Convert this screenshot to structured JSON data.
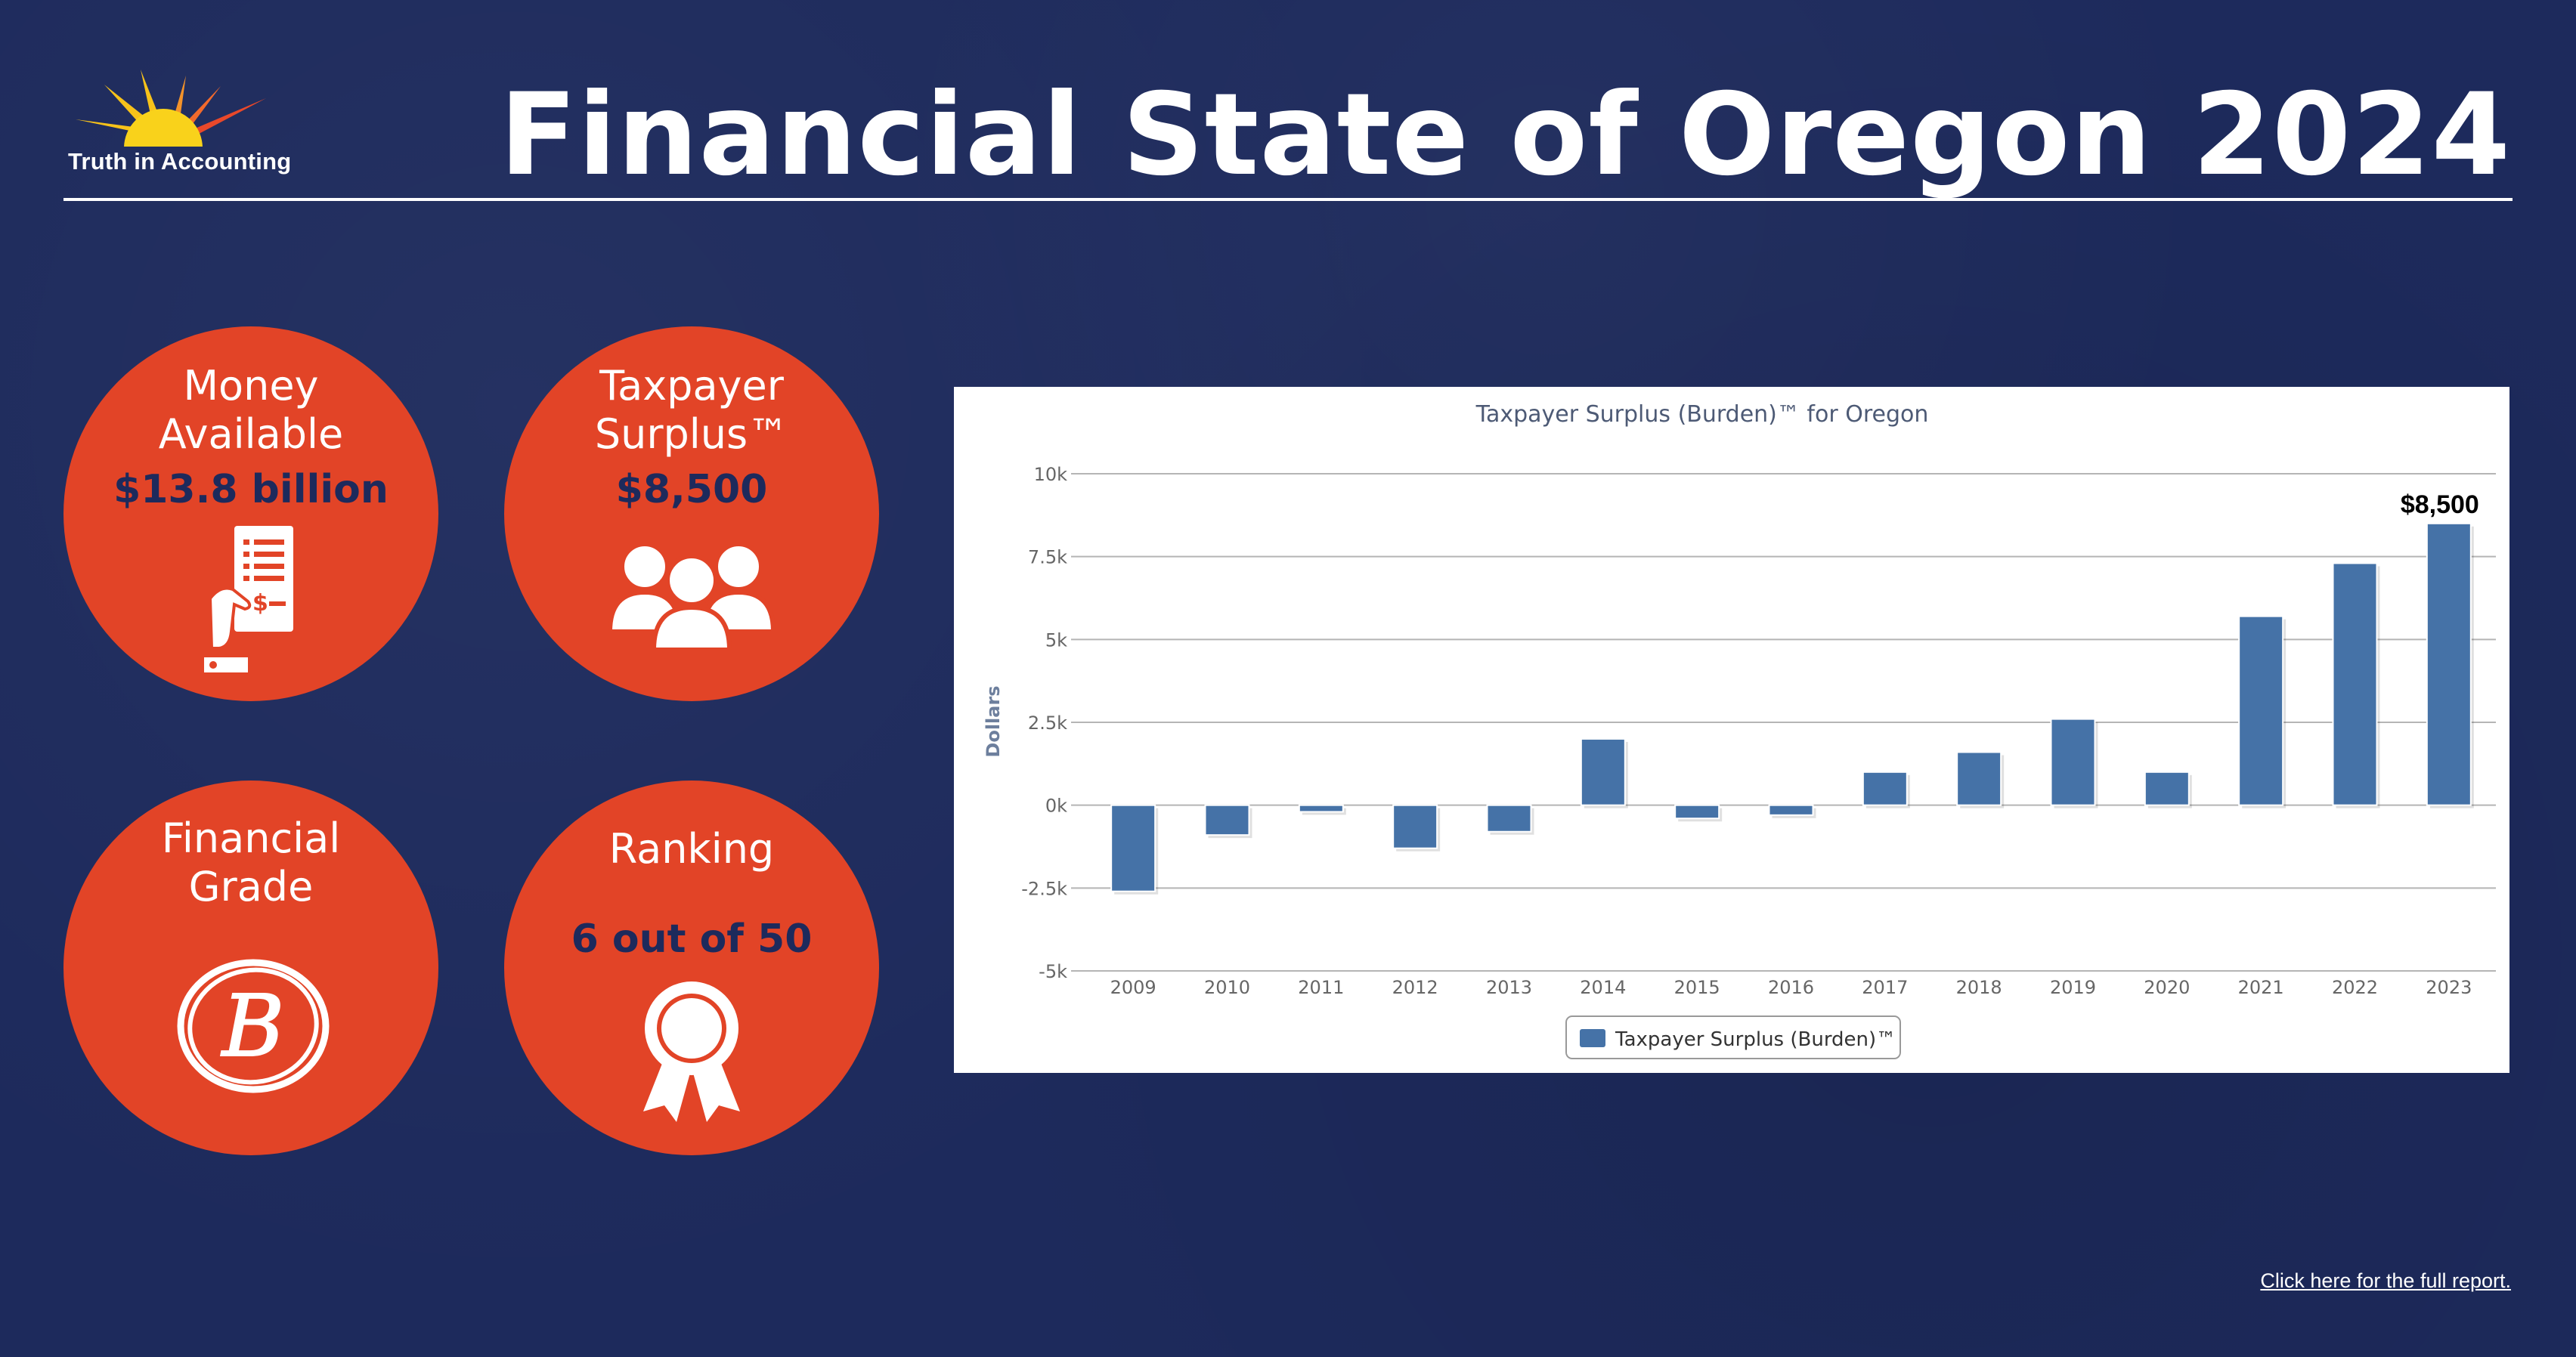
{
  "brand": {
    "logo_text": "Truth in Accounting"
  },
  "header": {
    "title": "Financial State of Oregon 2024"
  },
  "stats": {
    "money": {
      "label_line1": "Money",
      "label_line2": "Available",
      "value": "$13.8 billion",
      "icon": "receipt-hand-icon"
    },
    "surplus": {
      "label_line1": "Taxpayer",
      "label_line2": "Surplus™",
      "value": "$8,500",
      "icon": "people-group-icon"
    },
    "grade": {
      "label_line1": "Financial",
      "label_line2": "Grade",
      "value": "B",
      "icon": "grade-b-icon"
    },
    "ranking": {
      "label": "Ranking",
      "value": "6 out of 50",
      "icon": "award-ribbon-icon"
    }
  },
  "colors": {
    "background": "#1d2a5c",
    "circle": "#e24427",
    "bar": "#4572a7",
    "accent_text": "#1d2a5c"
  },
  "chart_data": {
    "type": "bar",
    "title": "Taxpayer Surplus (Burden)™ for Oregon",
    "xlabel": "",
    "ylabel": "Dollars",
    "categories": [
      "2009",
      "2010",
      "2011",
      "2012",
      "2013",
      "2014",
      "2015",
      "2016",
      "2017",
      "2018",
      "2019",
      "2020",
      "2021",
      "2022",
      "2023"
    ],
    "series": [
      {
        "name": "Taxpayer Surplus (Burden)™",
        "values": [
          -2600,
          -900,
          -200,
          -1300,
          -800,
          2000,
          -400,
          -300,
          1000,
          1600,
          2600,
          1000,
          5700,
          7300,
          8500
        ]
      }
    ],
    "ylim": [
      -5000,
      10000
    ],
    "yticks": [
      -5000,
      -2500,
      0,
      2500,
      5000,
      7500,
      10000
    ],
    "ytick_labels": [
      "-5k",
      "-2.5k",
      "0k",
      "2.5k",
      "5k",
      "7.5k",
      "10k"
    ],
    "annotation": {
      "category": "2023",
      "text": "$8,500"
    },
    "grid": true,
    "legend": "bottom-center"
  },
  "footer": {
    "link_text": "Click here for the full report."
  }
}
